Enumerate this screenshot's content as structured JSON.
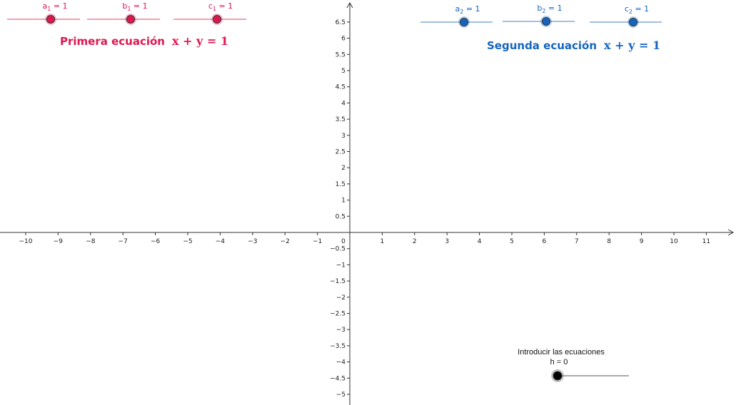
{
  "axes": {
    "x_ticks": [
      "−10",
      "−9",
      "−8",
      "−7",
      "−6",
      "−5",
      "−4",
      "−3",
      "−2",
      "−1",
      "0",
      "1",
      "2",
      "3",
      "4",
      "5",
      "6",
      "7",
      "8",
      "9",
      "10",
      "11"
    ],
    "y_ticks_pos": [
      "0.5",
      "1",
      "1.5",
      "2",
      "2.5",
      "3",
      "3.5",
      "4",
      "4.5",
      "5",
      "5.5",
      "6",
      "6.5"
    ],
    "y_ticks_neg": [
      "−0.5",
      "−1",
      "−1.5",
      "−2",
      "−2.5",
      "−3",
      "−3.5",
      "−4",
      "−4.5",
      "−5"
    ]
  },
  "equation1": {
    "title": "Primera ecuación",
    "math": "x + y = 1",
    "color": "#e0164f",
    "sliders": [
      {
        "var": "a",
        "sub": "1",
        "value_text": "= 1"
      },
      {
        "var": "b",
        "sub": "1",
        "value_text": "= 1"
      },
      {
        "var": "c",
        "sub": "1",
        "value_text": "= 1"
      }
    ]
  },
  "equation2": {
    "title": "Segunda ecuación",
    "math": "x + y = 1",
    "color": "#1565c0",
    "sliders": [
      {
        "var": "a",
        "sub": "2",
        "value_text": "= 1"
      },
      {
        "var": "b",
        "sub": "2",
        "value_text": "= 1"
      },
      {
        "var": "c",
        "sub": "2",
        "value_text": "= 1"
      }
    ]
  },
  "h_slider": {
    "caption": "Introducir las ecuaciones",
    "label": "h = 0",
    "value": 0
  }
}
